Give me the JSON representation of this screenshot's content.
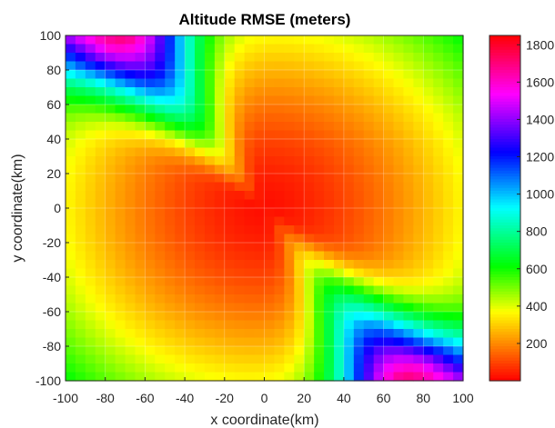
{
  "chart_data": {
    "type": "heatmap",
    "title": "Altitude RMSE (meters)",
    "xlabel": "x coordinate(km)",
    "ylabel": "y coordinate(km)",
    "xlim": [
      -100,
      100
    ],
    "ylim": [
      -100,
      100
    ],
    "x_ticks": [
      "-100",
      "-80",
      "-60",
      "-40",
      "-20",
      "0",
      "20",
      "40",
      "60",
      "80",
      "100"
    ],
    "y_ticks": [
      "-100",
      "-80",
      "-60",
      "-40",
      "-20",
      "0",
      "20",
      "40",
      "60",
      "80",
      "100"
    ],
    "colorbar": {
      "range": [
        0,
        1850
      ],
      "ticks": [
        "200",
        "400",
        "600",
        "800",
        "1000",
        "1200",
        "1400",
        "1600",
        "1800"
      ],
      "tick_values": [
        200,
        400,
        600,
        800,
        1000,
        1200,
        1400,
        1600,
        1800
      ]
    },
    "grid": true,
    "field_model": {
      "description": "RMSE rises with distance from the origin, peaks along the diagonal lobes at top-left and bottom-right",
      "center_rmse": 20,
      "corner_peak_rmse": 1800,
      "lobe_direction_deg": 125
    }
  }
}
